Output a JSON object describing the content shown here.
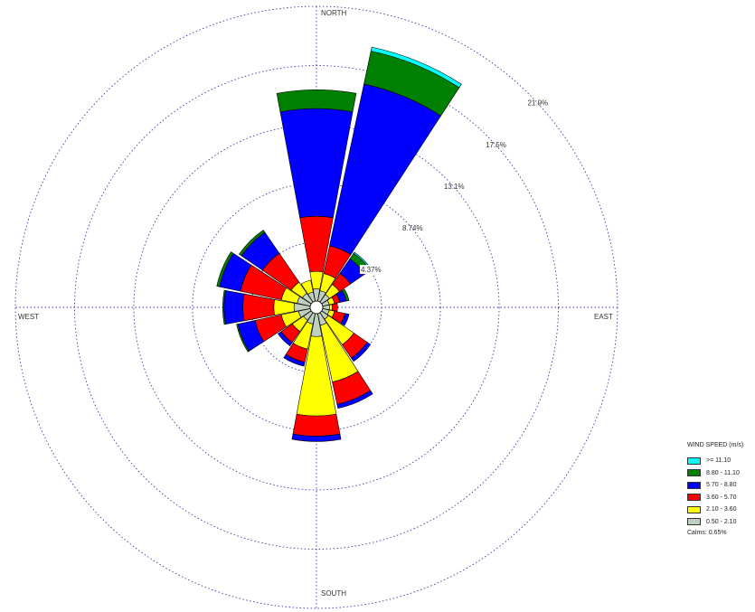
{
  "chart_data": {
    "type": "wind-rose",
    "directions": [
      "N",
      "NNE",
      "NE",
      "ENE",
      "E",
      "ESE",
      "SE",
      "SSE",
      "S",
      "SSW",
      "SW",
      "WSW",
      "W",
      "WNW",
      "NW",
      "NNW"
    ],
    "direction_labels": {
      "north": "NORTH",
      "east": "EAST",
      "south": "SOUTH",
      "west": "WEST"
    },
    "ring_labels": [
      "4.37%",
      "8.74%",
      "13.1%",
      "17.5%",
      "21.9%"
    ],
    "ring_values": [
      4.37,
      8.74,
      13.1,
      17.5,
      21.9
    ],
    "units": "percent frequency",
    "grid": true,
    "legend": {
      "title": "WIND SPEED (m/s)",
      "placement": "bottom-right",
      "calms": "Calms: 0.65%"
    },
    "series": [
      {
        "name": "0.50 - 2.10",
        "color": "#c0d0c0",
        "values": [
          0.9,
          0.8,
          0.7,
          0.5,
          0.5,
          0.5,
          0.6,
          0.9,
          1.7,
          0.8,
          0.7,
          0.9,
          1.2,
          1.0,
          0.8,
          0.7
        ]
      },
      {
        "name": "2.10 - 3.60",
        "color": "#ffff00",
        "values": [
          1.3,
          1.3,
          0.9,
          0.4,
          0.2,
          0.4,
          2.3,
          4.3,
          5.9,
          1.9,
          1.0,
          1.3,
          1.5,
          1.2,
          1.0,
          0.9
        ]
      },
      {
        "name": "3.60 - 5.70",
        "color": "#ff0000",
        "values": [
          4.1,
          2.1,
          1.0,
          0.4,
          0.4,
          0.8,
          1.2,
          1.7,
          1.5,
          1.0,
          1.0,
          2.0,
          2.3,
          3.1,
          2.6,
          0.0
        ]
      },
      {
        "name": "5.70 - 8.80",
        "color": "#0000ff",
        "values": [
          8.0,
          12.3,
          1.3,
          0.5,
          0.0,
          0.3,
          0.3,
          0.3,
          0.4,
          0.3,
          0.3,
          1.3,
          1.4,
          1.6,
          1.9,
          0.0
        ]
      },
      {
        "name": "8.80 - 11.10",
        "color": "#008000",
        "values": [
          1.4,
          2.5,
          0.5,
          0.2,
          0.0,
          0.0,
          0.0,
          0.0,
          0.0,
          0.0,
          0.0,
          0.1,
          0.1,
          0.2,
          0.2,
          0.0
        ]
      },
      {
        "name": ">= 11.10",
        "color": "#00ffff",
        "values": [
          0.0,
          0.3,
          0.1,
          0.0,
          0.0,
          0.0,
          0.0,
          0.0,
          0.0,
          0.0,
          0.0,
          0.0,
          0.0,
          0.0,
          0.0,
          0.0
        ]
      }
    ],
    "legend_order": [
      ">= 11.10",
      "8.80 - 11.10",
      "5.70 - 8.80",
      "3.60 - 5.70",
      "2.10 - 3.60",
      "0.50 - 2.10"
    ]
  }
}
